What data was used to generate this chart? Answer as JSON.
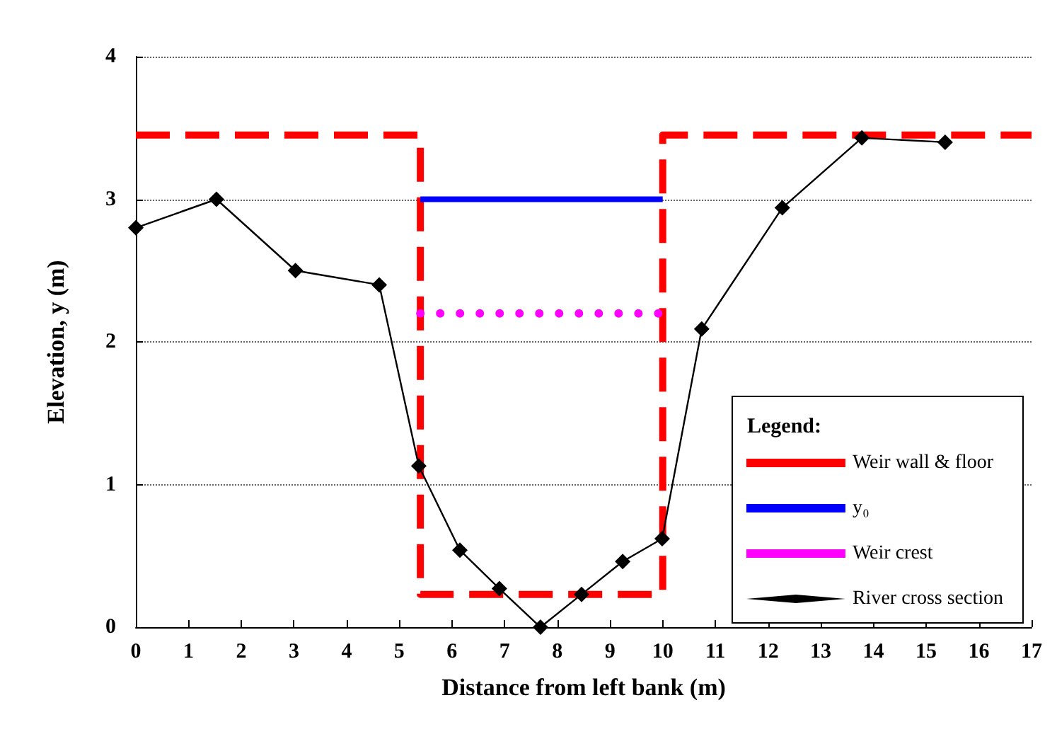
{
  "chart_data": {
    "type": "line",
    "xlabel": "Distance from left bank (m)",
    "ylabel": "Elevation, y (m)",
    "legend_title": "Legend:",
    "xlim": [
      0,
      17
    ],
    "xticks": [
      0,
      1,
      2,
      3,
      4,
      5,
      6,
      7,
      8,
      9,
      10,
      11,
      12,
      13,
      14,
      15,
      16,
      17
    ],
    "ylim": [
      0,
      4
    ],
    "yticks": [
      0,
      1,
      2,
      3,
      4
    ],
    "grid": "y",
    "legend": "bottom right",
    "series": [
      {
        "name": "Weir wall & floor",
        "color": "#ff0000",
        "line_style": "dashed",
        "marker": "none",
        "x": [
          0,
          5.4,
          5.4,
          10,
          10,
          17
        ],
        "values": [
          3.45,
          3.45,
          0.23,
          0.23,
          3.45,
          3.45
        ]
      },
      {
        "name": "y₀",
        "color": "#0000ff",
        "line_style": "solid",
        "marker": "none",
        "x": [
          5.4,
          10
        ],
        "values": [
          3.0,
          3.0
        ]
      },
      {
        "name": "Weir crest",
        "color": "#ff00ff",
        "line_style": "dotted",
        "marker": "none",
        "x": [
          5.4,
          10
        ],
        "values": [
          2.2,
          2.2
        ]
      },
      {
        "name": "River cross section",
        "color": "#000000",
        "line_style": "solid",
        "marker": "diamond",
        "x": [
          0,
          1.53,
          3.03,
          4.62,
          5.37,
          6.15,
          6.9,
          7.68,
          8.46,
          9.24,
          9.99,
          10.74,
          12.27,
          13.78,
          15.36
        ],
        "values": [
          2.8,
          3.0,
          2.5,
          2.4,
          1.13,
          0.54,
          0.27,
          0,
          0.23,
          0.46,
          0.62,
          2.09,
          2.94,
          3.43,
          3.4
        ]
      }
    ]
  }
}
